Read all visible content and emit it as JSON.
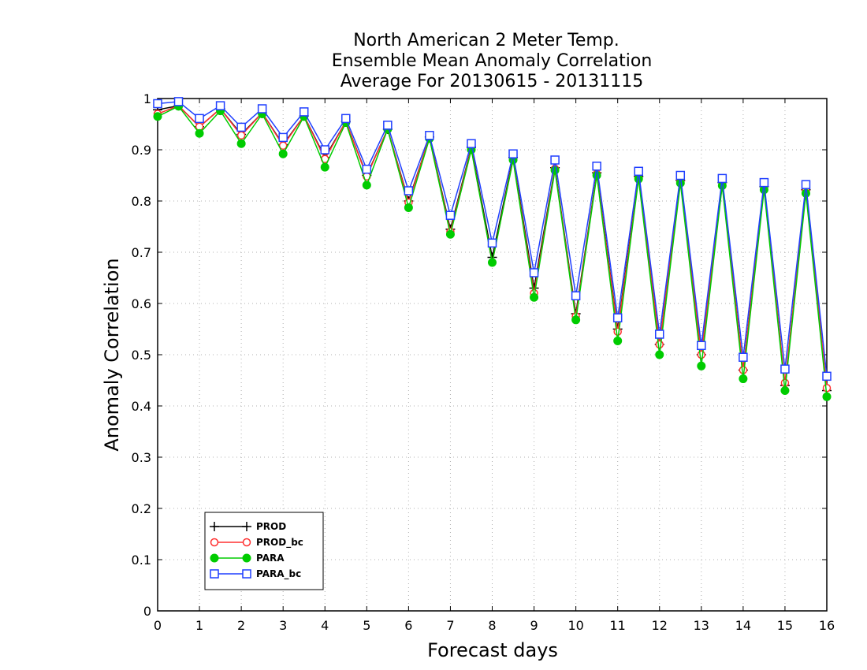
{
  "chart_data": {
    "type": "line",
    "title_lines": [
      "North American 2 Meter Temp.",
      "Ensemble Mean Anomaly Correlation",
      "Average For 20130615 - 20131115"
    ],
    "xlabel": "Forecast days",
    "ylabel": "Anomaly Correlation",
    "xlim": [
      0,
      16
    ],
    "ylim": [
      0,
      1
    ],
    "xticks": [
      0,
      1,
      2,
      3,
      4,
      5,
      6,
      7,
      8,
      9,
      10,
      11,
      12,
      13,
      14,
      15,
      16
    ],
    "xtick_labels": [
      "0",
      "1",
      "2",
      "3",
      "4",
      "5",
      "6",
      "7",
      "8",
      "9",
      "10",
      "11",
      "12",
      "13",
      "14",
      "15",
      "16"
    ],
    "yticks": [
      0,
      0.1,
      0.2,
      0.3,
      0.4,
      0.5,
      0.6,
      0.7,
      0.8,
      0.9,
      1
    ],
    "ytick_labels": [
      "0",
      "0.1",
      "0.2",
      "0.3",
      "0.4",
      "0.5",
      "0.6",
      "0.7",
      "0.8",
      "0.9",
      "1"
    ],
    "grid": true,
    "legend_position": "bottom-left",
    "x": [
      0,
      0.5,
      1,
      1.5,
      2,
      2.5,
      3,
      3.5,
      4,
      4.5,
      5,
      5.5,
      6,
      6.5,
      7,
      7.5,
      8,
      8.5,
      9,
      9.5,
      10,
      10.5,
      11,
      11.5,
      12,
      12.5,
      13,
      13.5,
      14,
      14.5,
      15,
      15.5,
      16
    ],
    "series": [
      {
        "name": "PROD",
        "color": "#000000",
        "marker": "plus",
        "values": [
          0.978,
          0.986,
          0.945,
          0.98,
          0.93,
          0.972,
          0.91,
          0.966,
          0.885,
          0.955,
          0.85,
          0.94,
          0.8,
          0.925,
          0.745,
          0.905,
          0.69,
          0.885,
          0.63,
          0.865,
          0.58,
          0.855,
          0.55,
          0.848,
          0.52,
          0.84,
          0.5,
          0.836,
          0.47,
          0.828,
          0.44,
          0.822,
          0.43
        ]
      },
      {
        "name": "PROD_bc",
        "color": "#ff3030",
        "marker": "open-circle",
        "values": [
          0.97,
          0.986,
          0.945,
          0.98,
          0.928,
          0.972,
          0.908,
          0.966,
          0.882,
          0.955,
          0.848,
          0.94,
          0.797,
          0.925,
          0.74,
          0.903,
          0.68,
          0.883,
          0.62,
          0.863,
          0.575,
          0.853,
          0.545,
          0.845,
          0.52,
          0.838,
          0.5,
          0.832,
          0.47,
          0.825,
          0.445,
          0.82,
          0.435
        ]
      },
      {
        "name": "PARA",
        "color": "#00cc00",
        "marker": "filled-circle",
        "values": [
          0.965,
          0.985,
          0.932,
          0.976,
          0.912,
          0.97,
          0.892,
          0.965,
          0.866,
          0.953,
          0.831,
          0.94,
          0.787,
          0.922,
          0.735,
          0.9,
          0.68,
          0.88,
          0.612,
          0.86,
          0.568,
          0.85,
          0.527,
          0.843,
          0.5,
          0.835,
          0.478,
          0.83,
          0.453,
          0.822,
          0.43,
          0.815,
          0.418
        ]
      },
      {
        "name": "PARA_bc",
        "color": "#1f3fff",
        "marker": "open-square",
        "values": [
          0.99,
          0.994,
          0.961,
          0.986,
          0.944,
          0.98,
          0.924,
          0.974,
          0.9,
          0.961,
          0.862,
          0.948,
          0.82,
          0.928,
          0.772,
          0.912,
          0.718,
          0.892,
          0.66,
          0.88,
          0.615,
          0.868,
          0.572,
          0.858,
          0.54,
          0.85,
          0.518,
          0.844,
          0.495,
          0.836,
          0.472,
          0.832,
          0.458
        ]
      }
    ]
  }
}
